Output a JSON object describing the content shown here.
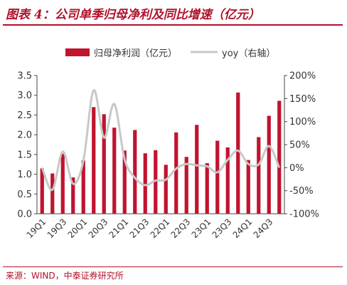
{
  "header": {
    "title": "图表 4：公司单季归母净利及同比增速（亿元）"
  },
  "footer": {
    "source": "来源：WIND，中泰证券研究所"
  },
  "colors": {
    "accent": "#b0112a",
    "bar": "#c0142f",
    "line": "#c8c8c8",
    "axis": "#444444"
  },
  "chart_data": {
    "type": "bar",
    "title": "",
    "legend_position": "top",
    "y_left": {
      "lim": [
        0,
        3.5
      ],
      "ticks": [
        "0.0",
        "0.5",
        "1.0",
        "1.5",
        "2.0",
        "2.5",
        "3.0",
        "3.5"
      ]
    },
    "y_right": {
      "lim": [
        -1.0,
        2.0
      ],
      "ticks": [
        "-100%",
        "-50%",
        "0%",
        "50%",
        "100%",
        "150%",
        "200%"
      ]
    },
    "x_ticks": [
      "19Q1",
      "19Q3",
      "20Q1",
      "20Q3",
      "21Q1",
      "21Q3",
      "22Q1",
      "22Q3",
      "23Q1",
      "23Q3",
      "24Q1",
      "24Q3"
    ],
    "categories": [
      "19Q1",
      "19Q2",
      "19Q3",
      "19Q4",
      "20Q1",
      "20Q2",
      "20Q3",
      "20Q4",
      "21Q1",
      "21Q2",
      "21Q3",
      "21Q4",
      "22Q1",
      "22Q2",
      "22Q3",
      "22Q4",
      "23Q1",
      "23Q2",
      "23Q3",
      "23Q4",
      "24Q1",
      "24Q2",
      "24Q3",
      "24Q4"
    ],
    "series": [
      {
        "name": "归母净利润（亿元）",
        "type": "bar",
        "axis": "left",
        "values": [
          1.15,
          1.02,
          1.52,
          0.92,
          1.35,
          2.7,
          2.52,
          2.18,
          1.6,
          2.12,
          1.53,
          1.61,
          1.24,
          2.06,
          1.44,
          2.25,
          1.28,
          1.85,
          1.68,
          3.07,
          1.36,
          1.94,
          2.48,
          2.86
        ]
      },
      {
        "name": "yoy（右轴）",
        "type": "line",
        "axis": "right",
        "values": [
          0.0,
          -0.48,
          0.35,
          -0.35,
          0.15,
          1.68,
          0.65,
          1.38,
          0.18,
          -0.22,
          -0.38,
          -0.28,
          -0.26,
          -0.02,
          0.08,
          0.05,
          0.03,
          -0.1,
          0.17,
          0.37,
          0.08,
          0.07,
          0.47,
          0.0
        ]
      }
    ]
  }
}
